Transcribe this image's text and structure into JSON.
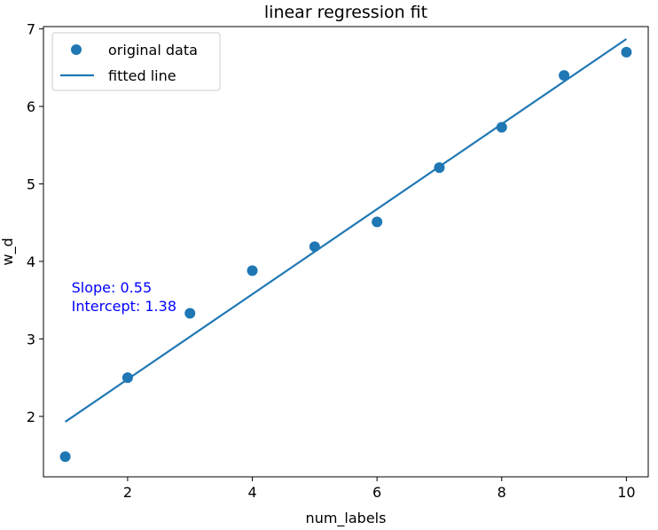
{
  "chart_data": {
    "type": "scatter",
    "title": "linear regression fit",
    "xlabel": "num_labels",
    "ylabel": "w_d",
    "xlim": [
      0.65,
      10.35
    ],
    "ylim": [
      1.22,
      7.03
    ],
    "xticks": [
      2,
      4,
      6,
      8,
      10
    ],
    "yticks": [
      2,
      3,
      4,
      5,
      6,
      7
    ],
    "grid": false,
    "legend_position": "top-left",
    "series": [
      {
        "name": "original data",
        "kind": "scatter",
        "color": "#1f77b4",
        "x": [
          1,
          2,
          3,
          4,
          5,
          6,
          7,
          8,
          9,
          10
        ],
        "y": [
          1.48,
          2.5,
          3.33,
          3.88,
          4.19,
          4.51,
          5.21,
          5.73,
          6.4,
          6.7
        ]
      },
      {
        "name": "fitted line",
        "kind": "line",
        "color": "#1f77b4",
        "x": [
          1,
          10
        ],
        "y": [
          1.93,
          6.87
        ]
      }
    ],
    "annotations": [
      {
        "lines": [
          "Slope: 0.55",
          "Intercept: 1.38"
        ],
        "color": "#0000ff",
        "anchor_x": 1.1,
        "anchor_y": 3.6
      }
    ]
  }
}
